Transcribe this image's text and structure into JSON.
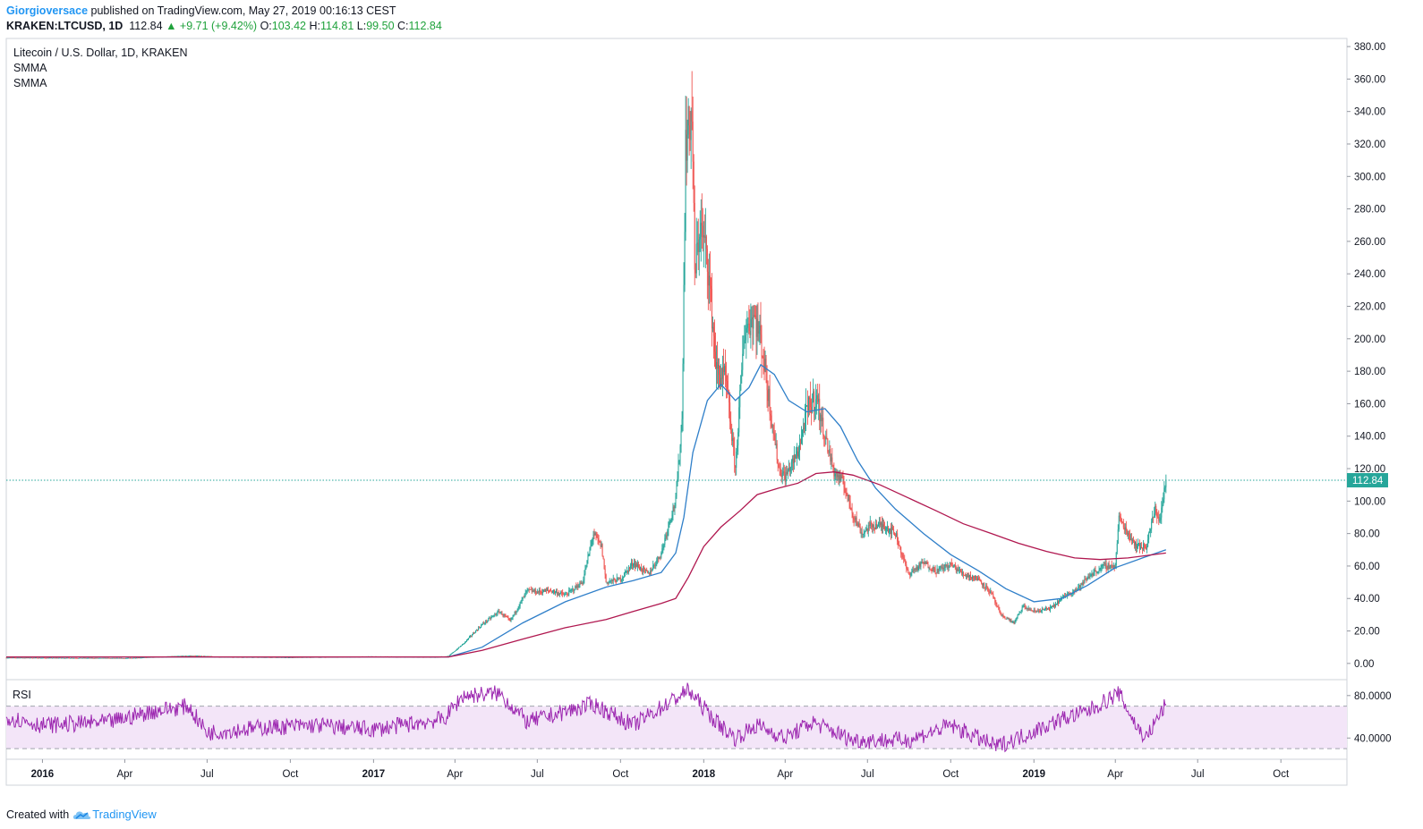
{
  "header": {
    "author": "Giorgioversace",
    "published": "published on TradingView.com, May 27, 2019 00:16:13 CEST",
    "symbol": "KRAKEN:LTCUSD, 1D",
    "last": "112.84",
    "change": "▲ +9.71 (+9.42%)",
    "o_label": "O:",
    "o_value": "103.42",
    "h_label": "H:",
    "h_value": "114.81",
    "l_label": "L:",
    "l_value": "99.50",
    "c_label": "C:",
    "c_value": "112.84"
  },
  "legend": {
    "title": "Litecoin / U.S. Dollar, 1D, KRAKEN",
    "indicator1": "SMMA",
    "indicator2": "SMMA",
    "rsi": "RSI"
  },
  "footer": {
    "created_with": "Created with",
    "brand": "TradingView"
  },
  "colors": {
    "up": "#26a69a",
    "down": "#ef5350",
    "smma_fast": "#2f7fc9",
    "smma_slow": "#b0174f",
    "rsi_line": "#9c27b0",
    "rsi_band": "#f3e5f8",
    "price_line": "#26a69a"
  },
  "chart_data": [
    {
      "type": "line",
      "subtype": "candlestick",
      "title": "Litecoin / U.S. Dollar, 1D, KRAKEN",
      "ylim": [
        -10,
        385
      ],
      "y_ticks": [
        "0.00",
        "20.00",
        "40.00",
        "60.00",
        "80.00",
        "100.00",
        "120.00",
        "140.00",
        "160.00",
        "180.00",
        "200.00",
        "220.00",
        "240.00",
        "260.00",
        "280.00",
        "300.00",
        "320.00",
        "340.00",
        "360.00",
        "380.00"
      ],
      "x_ticks": [
        "2016",
        "Apr",
        "Jul",
        "Oct",
        "2017",
        "Apr",
        "Jul",
        "Oct",
        "2018",
        "Apr",
        "Jul",
        "Oct",
        "2019",
        "Apr",
        "Jul",
        "Oct"
      ],
      "last_price_label": "112.84",
      "price_path": [
        [
          "2015-11-22",
          3.5
        ],
        [
          "2016-01-01",
          3.4
        ],
        [
          "2016-04-01",
          3.2
        ],
        [
          "2016-06-15",
          4.8
        ],
        [
          "2016-07-15",
          4.0
        ],
        [
          "2016-10-01",
          3.7
        ],
        [
          "2017-01-01",
          4.2
        ],
        [
          "2017-03-10",
          3.9
        ],
        [
          "2017-03-25",
          4.5
        ],
        [
          "2017-04-10",
          12
        ],
        [
          "2017-05-01",
          24
        ],
        [
          "2017-05-20",
          32
        ],
        [
          "2017-06-01",
          26
        ],
        [
          "2017-06-20",
          45
        ],
        [
          "2017-07-01",
          44
        ],
        [
          "2017-07-15",
          45
        ],
        [
          "2017-08-01",
          42
        ],
        [
          "2017-08-20",
          50
        ],
        [
          "2017-09-01",
          80
        ],
        [
          "2017-09-10",
          72
        ],
        [
          "2017-09-15",
          50
        ],
        [
          "2017-10-01",
          52
        ],
        [
          "2017-10-15",
          62
        ],
        [
          "2017-11-01",
          55
        ],
        [
          "2017-11-15",
          68
        ],
        [
          "2017-11-25",
          90
        ],
        [
          "2017-12-01",
          100
        ],
        [
          "2017-12-08",
          150
        ],
        [
          "2017-12-12",
          320
        ],
        [
          "2017-12-19",
          340
        ],
        [
          "2017-12-22",
          240
        ],
        [
          "2017-12-28",
          270
        ],
        [
          "2018-01-05",
          250
        ],
        [
          "2018-01-15",
          180
        ],
        [
          "2018-01-25",
          175
        ],
        [
          "2018-02-05",
          120
        ],
        [
          "2018-02-15",
          205
        ],
        [
          "2018-02-25",
          215
        ],
        [
          "2018-03-05",
          200
        ],
        [
          "2018-03-15",
          160
        ],
        [
          "2018-03-25",
          120
        ],
        [
          "2018-04-01",
          115
        ],
        [
          "2018-04-15",
          130
        ],
        [
          "2018-04-25",
          155
        ],
        [
          "2018-05-05",
          165
        ],
        [
          "2018-05-15",
          140
        ],
        [
          "2018-05-25",
          118
        ],
        [
          "2018-06-05",
          110
        ],
        [
          "2018-06-15",
          92
        ],
        [
          "2018-06-25",
          80
        ],
        [
          "2018-07-05",
          85
        ],
        [
          "2018-07-20",
          85
        ],
        [
          "2018-08-01",
          80
        ],
        [
          "2018-08-15",
          55
        ],
        [
          "2018-09-01",
          62
        ],
        [
          "2018-09-15",
          57
        ],
        [
          "2018-10-01",
          61
        ],
        [
          "2018-10-15",
          55
        ],
        [
          "2018-11-01",
          52
        ],
        [
          "2018-11-15",
          43
        ],
        [
          "2018-11-25",
          30
        ],
        [
          "2018-12-10",
          25
        ],
        [
          "2018-12-20",
          35
        ],
        [
          "2019-01-01",
          32
        ],
        [
          "2019-01-20",
          34
        ],
        [
          "2019-02-05",
          42
        ],
        [
          "2019-02-20",
          47
        ],
        [
          "2019-03-05",
          55
        ],
        [
          "2019-03-20",
          60
        ],
        [
          "2019-04-01",
          60
        ],
        [
          "2019-04-05",
          90
        ],
        [
          "2019-04-15",
          80
        ],
        [
          "2019-04-25",
          72
        ],
        [
          "2019-05-05",
          72
        ],
        [
          "2019-05-15",
          95
        ],
        [
          "2019-05-20",
          88
        ],
        [
          "2019-05-27",
          112.84
        ]
      ],
      "series": [
        {
          "name": "SMMA",
          "x": [
            "2015-11-22",
            "2016-06-01",
            "2017-01-01",
            "2017-03-25",
            "2017-05-01",
            "2017-06-15",
            "2017-08-01",
            "2017-09-15",
            "2017-10-15",
            "2017-11-15",
            "2017-12-01",
            "2017-12-10",
            "2017-12-20",
            "2018-01-05",
            "2018-01-20",
            "2018-02-05",
            "2018-02-20",
            "2018-03-05",
            "2018-03-20",
            "2018-04-05",
            "2018-04-25",
            "2018-05-15",
            "2018-06-01",
            "2018-06-20",
            "2018-07-10",
            "2018-08-01",
            "2018-09-01",
            "2018-10-01",
            "2018-11-01",
            "2018-12-01",
            "2019-01-01",
            "2019-02-01",
            "2019-03-01",
            "2019-04-01",
            "2019-05-01",
            "2019-05-27"
          ],
          "values": [
            4,
            4,
            4,
            4,
            10,
            25,
            38,
            47,
            51,
            56,
            68,
            90,
            130,
            162,
            172,
            162,
            170,
            184,
            178,
            162,
            155,
            157,
            146,
            125,
            108,
            95,
            80,
            67,
            57,
            46,
            38,
            40,
            48,
            59,
            65,
            70
          ]
        },
        {
          "name": "SMMA",
          "x": [
            "2015-11-22",
            "2016-06-01",
            "2017-01-01",
            "2017-03-25",
            "2017-05-01",
            "2017-06-15",
            "2017-08-01",
            "2017-09-15",
            "2017-10-15",
            "2017-11-15",
            "2017-12-01",
            "2017-12-15",
            "2018-01-01",
            "2018-01-20",
            "2018-02-10",
            "2018-03-01",
            "2018-03-25",
            "2018-04-15",
            "2018-05-05",
            "2018-05-25",
            "2018-06-15",
            "2018-07-15",
            "2018-08-15",
            "2018-09-15",
            "2018-10-15",
            "2018-11-15",
            "2018-12-15",
            "2019-01-15",
            "2019-02-15",
            "2019-03-15",
            "2019-04-15",
            "2019-05-27"
          ],
          "values": [
            4,
            4,
            4,
            4,
            8,
            15,
            22,
            27,
            32,
            37,
            40,
            53,
            72,
            84,
            94,
            104,
            108,
            111,
            117,
            118,
            116,
            110,
            102,
            94,
            86,
            80,
            74,
            69,
            65,
            64,
            65,
            68
          ]
        }
      ]
    },
    {
      "type": "line",
      "title": "RSI",
      "ylim": [
        20,
        95
      ],
      "y_ticks": [
        "40.0000",
        "80.0000"
      ],
      "band": [
        30,
        70
      ],
      "anchors": [
        [
          "2015-11-22",
          60
        ],
        [
          "2016-01-01",
          52
        ],
        [
          "2016-03-15",
          55
        ],
        [
          "2016-05-01",
          65
        ],
        [
          "2016-06-10",
          70
        ],
        [
          "2016-07-01",
          45
        ],
        [
          "2016-09-01",
          50
        ],
        [
          "2016-11-01",
          52
        ],
        [
          "2017-01-01",
          48
        ],
        [
          "2017-03-20",
          58
        ],
        [
          "2017-04-10",
          80
        ],
        [
          "2017-05-20",
          82
        ],
        [
          "2017-06-20",
          55
        ],
        [
          "2017-09-01",
          72
        ],
        [
          "2017-10-15",
          52
        ],
        [
          "2017-12-15",
          85
        ],
        [
          "2018-01-15",
          55
        ],
        [
          "2018-02-05",
          40
        ],
        [
          "2018-03-01",
          52
        ],
        [
          "2018-04-01",
          40
        ],
        [
          "2018-05-01",
          55
        ],
        [
          "2018-06-15",
          38
        ],
        [
          "2018-08-15",
          38
        ],
        [
          "2018-10-01",
          52
        ],
        [
          "2018-11-20",
          32
        ],
        [
          "2018-12-20",
          42
        ],
        [
          "2019-02-01",
          58
        ],
        [
          "2019-03-01",
          65
        ],
        [
          "2019-04-05",
          82
        ],
        [
          "2019-04-25",
          50
        ],
        [
          "2019-05-05",
          40
        ],
        [
          "2019-05-27",
          72
        ]
      ]
    }
  ]
}
